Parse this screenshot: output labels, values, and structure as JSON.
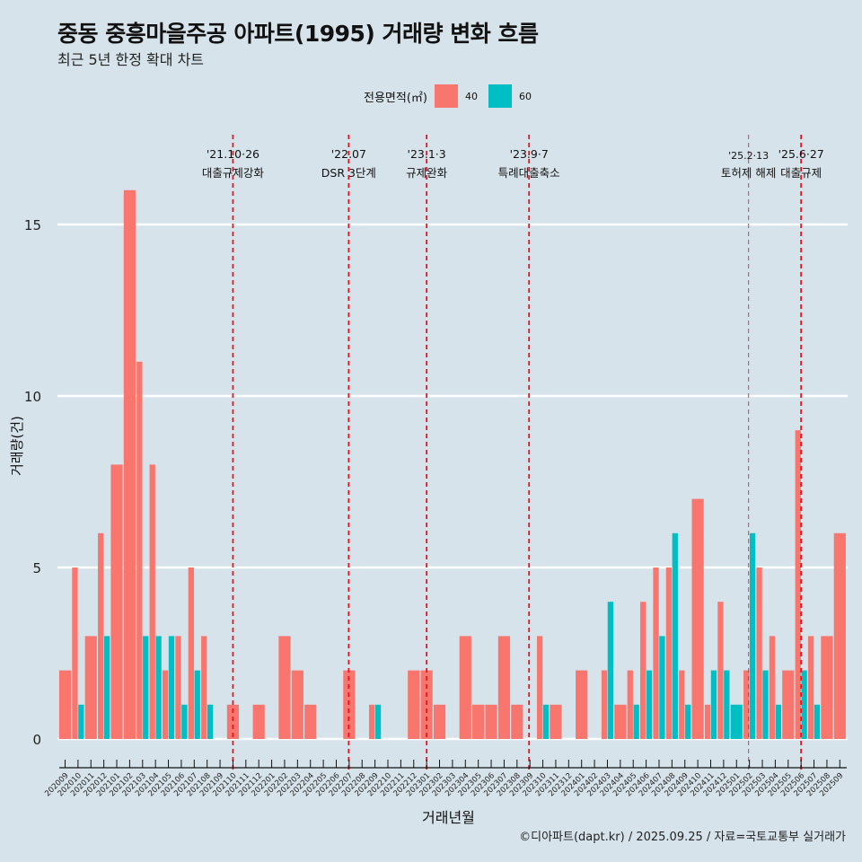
{
  "title": "중동 중흥마을주공 아파트(1995) 거래량 변화 흐름",
  "subtitle": "최근 5년 한정 확대 차트",
  "caption": "©디아파트(dapt.kr) / 2025.09.25 / 자료=국토교통부 실거래가",
  "colors": {
    "background": "#d7e3ea",
    "area40": "#f8766d",
    "area60": "#00bfc4",
    "event_line": "#e8141e",
    "grid": "#ffffff"
  },
  "chart_data": {
    "type": "bar",
    "title": "중동 중흥마을주공 아파트(1995) 거래량 변화 흐름",
    "xlabel": "거래년월",
    "ylabel": "거래량(건)",
    "ylim": [
      -0.8,
      17
    ],
    "yticks": [
      0,
      5,
      10,
      15
    ],
    "grid": true,
    "legend": {
      "title": "전용면적(㎡)",
      "placement": "top",
      "entries": [
        "40",
        "60"
      ]
    },
    "categories": [
      "202009",
      "202010",
      "202011",
      "202012",
      "202101",
      "202102",
      "202103",
      "202104",
      "202105",
      "202106",
      "202107",
      "202108",
      "202109",
      "202110",
      "202111",
      "202112",
      "202201",
      "202202",
      "202203",
      "202204",
      "202205",
      "202206",
      "202207",
      "202208",
      "202209",
      "202210",
      "202211",
      "202212",
      "202301",
      "202302",
      "202303",
      "202304",
      "202305",
      "202306",
      "202307",
      "202308",
      "202309",
      "202310",
      "202311",
      "202312",
      "202401",
      "202402",
      "202403",
      "202404",
      "202405",
      "202406",
      "202407",
      "202408",
      "202409",
      "202410",
      "202411",
      "202412",
      "202501",
      "202502",
      "202503",
      "202504",
      "202505",
      "202506",
      "202507",
      "202508",
      "202509"
    ],
    "series": [
      {
        "name": "40",
        "values": [
          2,
          5,
          3,
          6,
          8,
          16,
          11,
          8,
          2,
          3,
          5,
          3,
          0,
          1,
          0,
          1,
          0,
          3,
          2,
          1,
          0,
          0,
          2,
          0,
          1,
          0,
          0,
          2,
          2,
          1,
          0,
          3,
          1,
          1,
          3,
          1,
          0,
          3,
          1,
          0,
          2,
          0,
          2,
          1,
          2,
          4,
          5,
          5,
          2,
          7,
          1,
          4,
          0,
          2,
          5,
          3,
          2,
          9,
          3,
          3,
          6
        ]
      },
      {
        "name": "60",
        "values": [
          0,
          1,
          0,
          3,
          0,
          0,
          3,
          3,
          3,
          1,
          2,
          1,
          0,
          0,
          0,
          0,
          0,
          0,
          0,
          0,
          0,
          0,
          0,
          0,
          1,
          0,
          0,
          0,
          0,
          0,
          0,
          0,
          0,
          0,
          0,
          0,
          0,
          1,
          0,
          0,
          0,
          0,
          4,
          0,
          1,
          2,
          3,
          6,
          1,
          0,
          2,
          2,
          1,
          6,
          2,
          1,
          0,
          2,
          1,
          0,
          0
        ]
      }
    ],
    "events": [
      {
        "date": "'21.10·26",
        "label": "대출규제강화",
        "month": "202110"
      },
      {
        "date": "'22.07",
        "label": "DSR 3단계",
        "month": "202207"
      },
      {
        "date": "'23.1·3",
        "label": "규제완화",
        "month": "202301"
      },
      {
        "date": "'23.9·7",
        "label": "특례대출축소",
        "month": "202309"
      },
      {
        "date": "'25.2·13",
        "label": "토허제 해제",
        "month": "202502"
      },
      {
        "date": "'25.6·27",
        "label": "대출규제",
        "month": "202506"
      }
    ]
  }
}
